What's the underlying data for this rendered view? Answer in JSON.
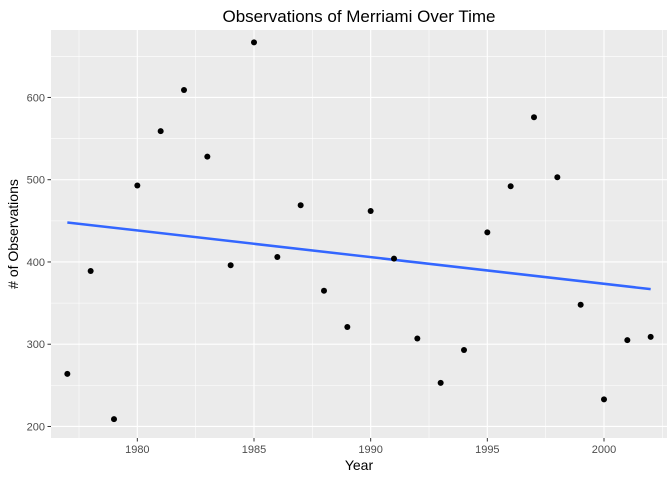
{
  "chart_data": {
    "type": "scatter",
    "title": "Observations of Merriami Over Time",
    "xlabel": "Year",
    "ylabel": "# of Observations",
    "xlim": [
      1976.3,
      2002.7
    ],
    "ylim": [
      186,
      682
    ],
    "x_ticks": [
      1980,
      1985,
      1990,
      1995,
      2000
    ],
    "x_tick_labels": [
      "1980",
      "1985",
      "1990",
      "1995",
      "2000"
    ],
    "y_ticks": [
      200,
      300,
      400,
      500,
      600
    ],
    "y_tick_labels": [
      "200",
      "300",
      "400",
      "500",
      "600"
    ],
    "grid": true,
    "legend": "none",
    "series": [
      {
        "x": [
          1977,
          1978,
          1979,
          1980,
          1981,
          1982,
          1983,
          1984,
          1985,
          1986,
          1987,
          1988,
          1989,
          1990,
          1991,
          1992,
          1993,
          1994,
          1995,
          1996,
          1997,
          1998,
          1999,
          2000,
          2001,
          2002
        ],
        "y": [
          264,
          389,
          209,
          493,
          559,
          609,
          528,
          396,
          667,
          406,
          469,
          365,
          321,
          462,
          404,
          307,
          253,
          293,
          436,
          492,
          576,
          503,
          348,
          233,
          305,
          309
        ],
        "color": "#000000"
      }
    ],
    "trend_line": {
      "x": [
        1977,
        2002
      ],
      "y": [
        448,
        367
      ],
      "color": "#3366FF"
    },
    "colors": {
      "panel_background": "#EBEBEB",
      "grid": "#FFFFFF"
    }
  }
}
